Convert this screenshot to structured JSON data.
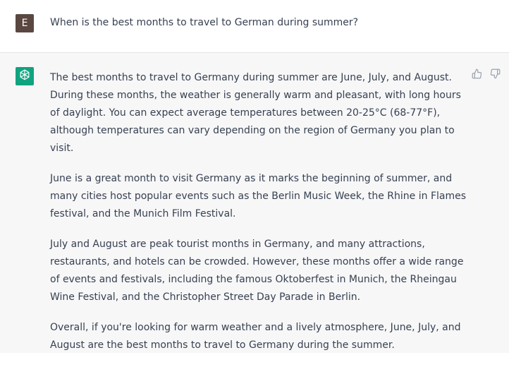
{
  "user_message": {
    "avatar_initial": "E",
    "text": "When is the best months to travel to German during summer?"
  },
  "assistant_message": {
    "avatar_icon": "openai-logo-icon",
    "paragraphs": [
      "The best months to travel to Germany during summer are June, July, and August. During these months, the weather is generally warm and pleasant, with long hours of daylight. You can expect average temperatures between 20-25°C (68-77°F), although temperatures can vary depending on the region of Germany you plan to visit.",
      "June is a great month to visit Germany as it marks the beginning of summer, and many cities host popular events such as the Berlin Music Week, the Rhine in Flames festival, and the Munich Film Festival.",
      "July and August are peak tourist months in Germany, and many attractions, restaurants, and hotels can be crowded. However, these months offer a wide range of events and festivals, including the famous Oktoberfest in Munich, the Rheingau Wine Festival, and the Christopher Street Day Parade in Berlin.",
      "Overall, if you're looking for warm weather and a lively atmosphere, June, July, and August are the best months to travel to Germany during the summer."
    ],
    "actions": [
      "thumbs-up-icon",
      "thumbs-down-icon"
    ]
  },
  "colors": {
    "user_avatar_bg": "#5b4741",
    "assistant_avatar_bg": "#10a37f",
    "assistant_row_bg": "#f7f7f8",
    "text": "#374151"
  }
}
